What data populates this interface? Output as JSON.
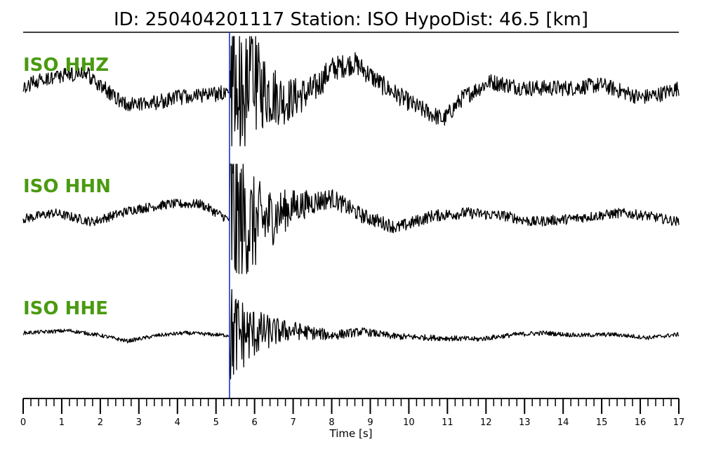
{
  "header": {
    "title": "ID: 250404201117   Station: ISO   HypoDist:    46.5 [km]"
  },
  "colors": {
    "trace": "#000000",
    "label": "#4a9a10",
    "pick_line": "#1f2fd6",
    "axis": "#000000"
  },
  "chart_data": {
    "type": "line",
    "title": "ID: 250404201117   Station: ISO   HypoDist:    46.5 [km]",
    "xlabel": "Time [s]",
    "ylabel": "",
    "xlim": [
      0,
      17
    ],
    "x_ticks": [
      0,
      1,
      2,
      3,
      4,
      5,
      6,
      7,
      8,
      9,
      10,
      11,
      12,
      13,
      14,
      15,
      16,
      17
    ],
    "minor_tick_step": 0.2,
    "grid": false,
    "pick_time": 5.35,
    "series": [
      {
        "name": "ISO HHZ",
        "noise": 0.12,
        "keypoints": [
          [
            0,
            0.05
          ],
          [
            0.5,
            0.2
          ],
          [
            1.0,
            0.25
          ],
          [
            1.6,
            0.3
          ],
          [
            2.2,
            0.0
          ],
          [
            2.6,
            -0.2
          ],
          [
            3.3,
            -0.2
          ],
          [
            4.0,
            -0.1
          ],
          [
            5.0,
            -0.05
          ],
          [
            5.3,
            0.0
          ],
          [
            6.0,
            0.1
          ],
          [
            6.8,
            -0.15
          ],
          [
            7.5,
            0.0
          ],
          [
            8.0,
            0.35
          ],
          [
            8.6,
            0.45
          ],
          [
            9.3,
            0.1
          ],
          [
            10.2,
            -0.25
          ],
          [
            10.9,
            -0.45
          ],
          [
            11.4,
            -0.1
          ],
          [
            12.1,
            0.15
          ],
          [
            13.0,
            0.05
          ],
          [
            14.2,
            0.05
          ],
          [
            15.0,
            0.1
          ],
          [
            16.0,
            -0.1
          ],
          [
            16.5,
            -0.05
          ],
          [
            17,
            0.05
          ]
        ]
      },
      {
        "name": "ISO HHN",
        "noise": 0.08,
        "keypoints": [
          [
            0,
            0.0
          ],
          [
            0.8,
            0.1
          ],
          [
            1.8,
            -0.05
          ],
          [
            2.8,
            0.15
          ],
          [
            3.8,
            0.25
          ],
          [
            4.6,
            0.25
          ],
          [
            5.3,
            0.0
          ],
          [
            6.0,
            -0.1
          ],
          [
            7.0,
            0.2
          ],
          [
            8.0,
            0.35
          ],
          [
            8.8,
            0.05
          ],
          [
            9.7,
            -0.15
          ],
          [
            10.6,
            0.05
          ],
          [
            11.5,
            0.1
          ],
          [
            12.5,
            0.05
          ],
          [
            13.2,
            -0.05
          ],
          [
            14.2,
            0.0
          ],
          [
            15.5,
            0.1
          ],
          [
            16.2,
            0.05
          ],
          [
            17,
            -0.05
          ]
        ]
      },
      {
        "name": "ISO HHE",
        "noise": 0.04,
        "keypoints": [
          [
            0,
            0.05
          ],
          [
            1.2,
            0.1
          ],
          [
            2.0,
            0.0
          ],
          [
            2.7,
            -0.12
          ],
          [
            3.5,
            0.0
          ],
          [
            4.2,
            0.05
          ],
          [
            5.3,
            0.0
          ],
          [
            6.0,
            0.05
          ],
          [
            7.0,
            0.1
          ],
          [
            8.0,
            0.0
          ],
          [
            8.8,
            0.08
          ],
          [
            9.6,
            -0.02
          ],
          [
            10.6,
            -0.05
          ],
          [
            11.8,
            -0.08
          ],
          [
            12.8,
            0.02
          ],
          [
            13.5,
            0.05
          ],
          [
            14.4,
            0.0
          ],
          [
            15.3,
            0.02
          ],
          [
            16.2,
            -0.05
          ],
          [
            17,
            0.02
          ]
        ]
      }
    ]
  }
}
